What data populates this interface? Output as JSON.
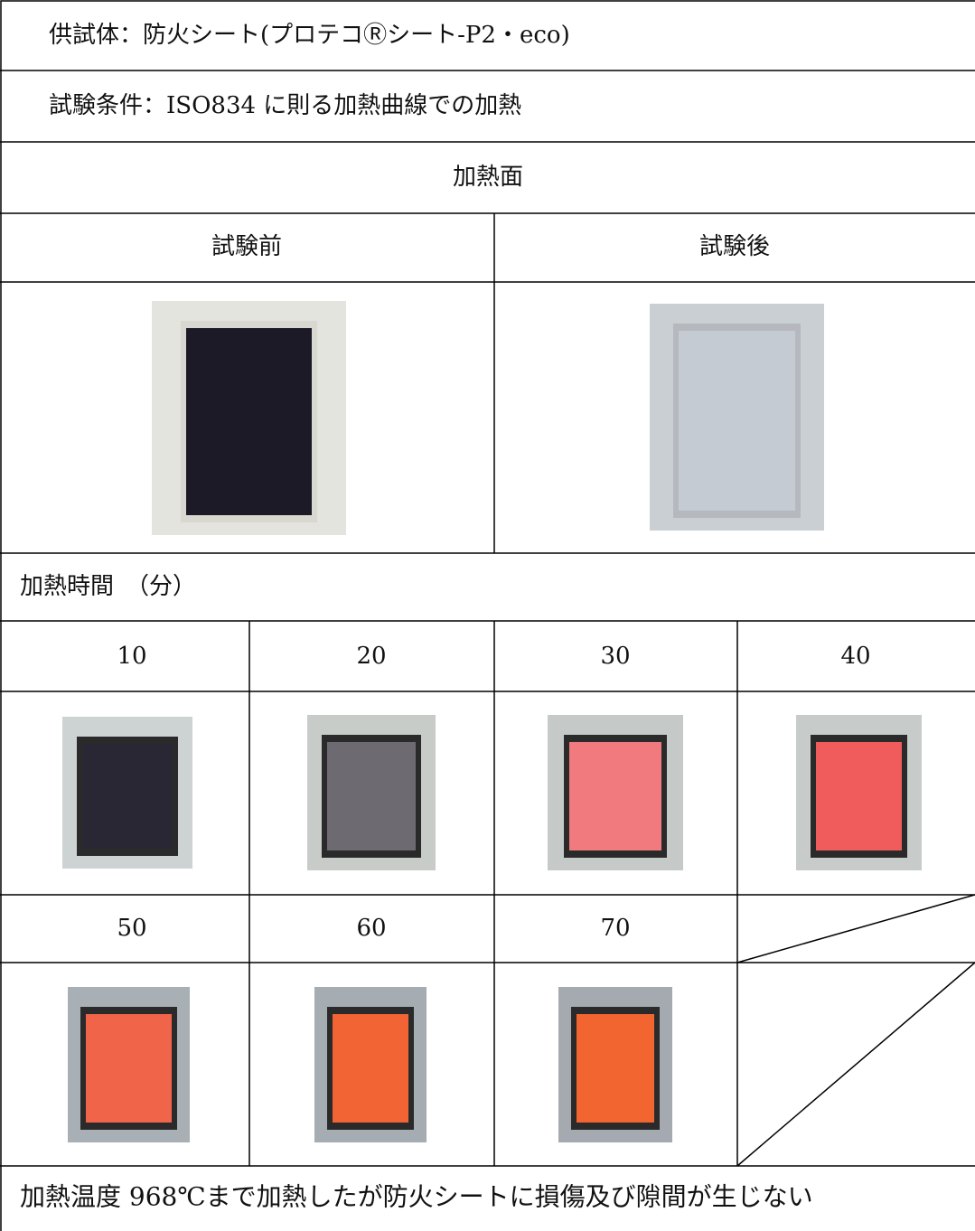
{
  "specimen": "供試体：防火シート(プロテコⓇシート-P2・eco)",
  "condition": "試験条件：ISO834 に則る加熱曲線での加熱",
  "heated_face": "加熱面",
  "before": "試験前",
  "after": "試験後",
  "time_label": "加熱時間　（分）",
  "times": [
    10,
    20,
    30,
    40,
    50,
    60,
    70
  ],
  "result": "加熱温度 968℃まで加熱したが防火シートに損傷及び隙間が生じない"
}
